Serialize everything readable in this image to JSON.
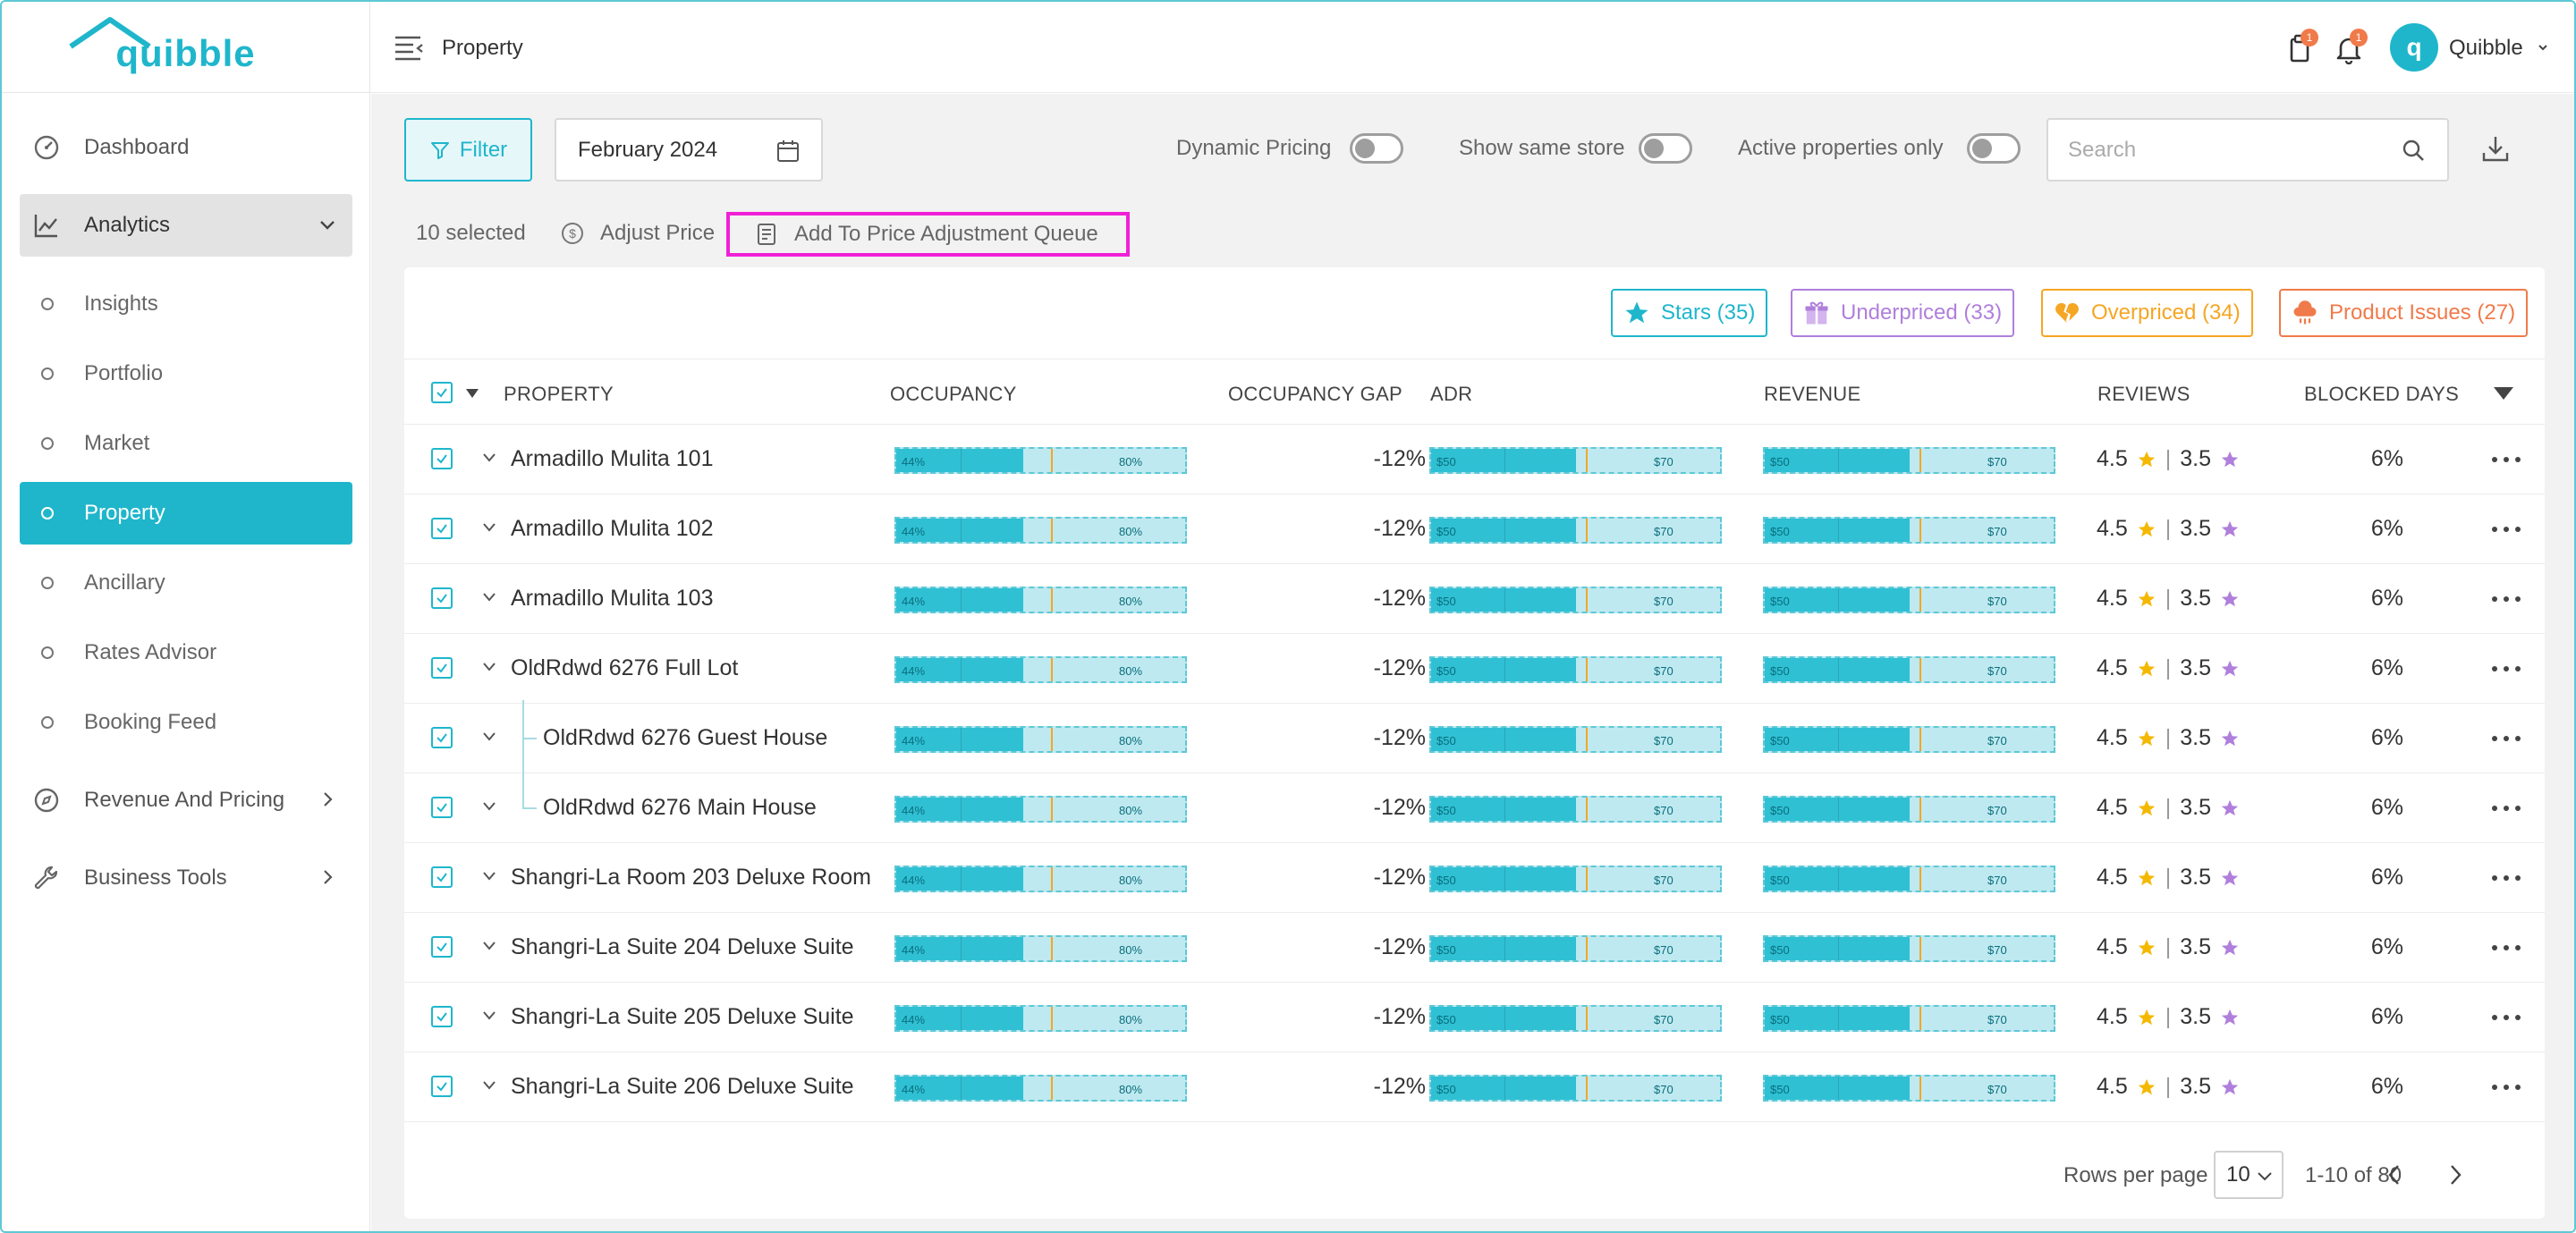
{
  "app": {
    "brand": "quibble"
  },
  "sidebar": {
    "items": [
      {
        "label": "Dashboard"
      },
      {
        "label": "Analytics"
      },
      {
        "label": "Revenue And Pricing"
      },
      {
        "label": "Business Tools"
      }
    ],
    "analytics_sub": [
      {
        "label": "Insights"
      },
      {
        "label": "Portfolio"
      },
      {
        "label": "Market"
      },
      {
        "label": "Property"
      },
      {
        "label": "Ancillary"
      },
      {
        "label": "Rates Advisor"
      },
      {
        "label": "Booking Feed"
      }
    ]
  },
  "topbar": {
    "title": "Property",
    "tasks_badge": "1",
    "notifications_badge": "1",
    "user_initial": "q",
    "user_name": "Quibble"
  },
  "toolbar": {
    "filter_label": "Filter",
    "date_value": "February 2024",
    "dynamic_pricing_label": "Dynamic Pricing",
    "same_store_label": "Show same store",
    "active_only_label": "Active properties only",
    "search_placeholder": "Search"
  },
  "bulk": {
    "selected": "10 selected",
    "adjust_price": "Adjust Price",
    "add_queue": "Add To Price Adjustment Queue"
  },
  "pills": {
    "stars": "Stars (35)",
    "underpriced": "Underpriced (33)",
    "overpriced": "Overpriced (34)",
    "product_issues": "Product Issues (27)"
  },
  "colors": {
    "accent": "#1fb6cc",
    "stars": "#1fb6cc",
    "underpriced": "#b07fdc",
    "overpriced": "#f5a623",
    "product_issues": "#f07a4a",
    "highlight": "#f020d6"
  },
  "table": {
    "columns": {
      "property": "PROPERTY",
      "occupancy": "OCCUPANCY",
      "occupancy_gap": "OCCUPANCY GAP",
      "adr": "ADR",
      "revenue": "REVENUE",
      "reviews": "REVIEWS",
      "blocked_days": "BLOCKED DAYS"
    },
    "rows": [
      {
        "name": "Armadillo Mulita 101",
        "level": 0,
        "occ_fill": 0.44,
        "occ_lbl": "44%",
        "occ_max": "80%",
        "gap": "-12%",
        "adr_lbl": "$50",
        "adr_max": "$70",
        "adr_fill": 0.5,
        "rev_lbl": "$50",
        "rev_max": "$70",
        "rev_fill": 0.5,
        "rating1": "4.5",
        "rating2": "3.5",
        "blocked": "6%"
      },
      {
        "name": "Armadillo Mulita 102",
        "level": 0,
        "occ_fill": 0.44,
        "occ_lbl": "44%",
        "occ_max": "80%",
        "gap": "-12%",
        "adr_lbl": "$50",
        "adr_max": "$70",
        "adr_fill": 0.5,
        "rev_lbl": "$50",
        "rev_max": "$70",
        "rev_fill": 0.5,
        "rating1": "4.5",
        "rating2": "3.5",
        "blocked": "6%"
      },
      {
        "name": "Armadillo Mulita 103",
        "level": 0,
        "occ_fill": 0.44,
        "occ_lbl": "44%",
        "occ_max": "80%",
        "gap": "-12%",
        "adr_lbl": "$50",
        "adr_max": "$70",
        "adr_fill": 0.5,
        "rev_lbl": "$50",
        "rev_max": "$70",
        "rev_fill": 0.5,
        "rating1": "4.5",
        "rating2": "3.5",
        "blocked": "6%"
      },
      {
        "name": "OldRdwd 6276 Full Lot",
        "level": 0,
        "occ_fill": 0.44,
        "occ_lbl": "44%",
        "occ_max": "80%",
        "gap": "-12%",
        "adr_lbl": "$50",
        "adr_max": "$70",
        "adr_fill": 0.5,
        "rev_lbl": "$50",
        "rev_max": "$70",
        "rev_fill": 0.5,
        "rating1": "4.5",
        "rating2": "3.5",
        "blocked": "6%"
      },
      {
        "name": "OldRdwd 6276 Guest House",
        "level": 1,
        "occ_fill": 0.44,
        "occ_lbl": "44%",
        "occ_max": "80%",
        "gap": "-12%",
        "adr_lbl": "$50",
        "adr_max": "$70",
        "adr_fill": 0.5,
        "rev_lbl": "$50",
        "rev_max": "$70",
        "rev_fill": 0.5,
        "rating1": "4.5",
        "rating2": "3.5",
        "blocked": "6%"
      },
      {
        "name": "OldRdwd 6276 Main House",
        "level": 1,
        "occ_fill": 0.44,
        "occ_lbl": "44%",
        "occ_max": "80%",
        "gap": "-12%",
        "adr_lbl": "$50",
        "adr_max": "$70",
        "adr_fill": 0.5,
        "rev_lbl": "$50",
        "rev_max": "$70",
        "rev_fill": 0.5,
        "rating1": "4.5",
        "rating2": "3.5",
        "blocked": "6%"
      },
      {
        "name": "Shangri-La Room  203 Deluxe Room",
        "level": 0,
        "occ_fill": 0.44,
        "occ_lbl": "44%",
        "occ_max": "80%",
        "gap": "-12%",
        "adr_lbl": "$50",
        "adr_max": "$70",
        "adr_fill": 0.5,
        "rev_lbl": "$50",
        "rev_max": "$70",
        "rev_fill": 0.5,
        "rating1": "4.5",
        "rating2": "3.5",
        "blocked": "6%"
      },
      {
        "name": "Shangri-La Suite  204 Deluxe Suite",
        "level": 0,
        "occ_fill": 0.44,
        "occ_lbl": "44%",
        "occ_max": "80%",
        "gap": "-12%",
        "adr_lbl": "$50",
        "adr_max": "$70",
        "adr_fill": 0.5,
        "rev_lbl": "$50",
        "rev_max": "$70",
        "rev_fill": 0.5,
        "rating1": "4.5",
        "rating2": "3.5",
        "blocked": "6%"
      },
      {
        "name": "Shangri-La Suite  205 Deluxe Suite",
        "level": 0,
        "occ_fill": 0.44,
        "occ_lbl": "44%",
        "occ_max": "80%",
        "gap": "-12%",
        "adr_lbl": "$50",
        "adr_max": "$70",
        "adr_fill": 0.5,
        "rev_lbl": "$50",
        "rev_max": "$70",
        "rev_fill": 0.5,
        "rating1": "4.5",
        "rating2": "3.5",
        "blocked": "6%"
      },
      {
        "name": "Shangri-La Suite  206 Deluxe Suite",
        "level": 0,
        "occ_fill": 0.44,
        "occ_lbl": "44%",
        "occ_max": "80%",
        "gap": "-12%",
        "adr_lbl": "$50",
        "adr_max": "$70",
        "adr_fill": 0.5,
        "rev_lbl": "$50",
        "rev_max": "$70",
        "rev_fill": 0.5,
        "rating1": "4.5",
        "rating2": "3.5",
        "blocked": "6%"
      }
    ]
  },
  "pagination": {
    "rows_per_page_label": "Rows per page",
    "rows_per_page": "10",
    "range": "1-10 of 80"
  }
}
